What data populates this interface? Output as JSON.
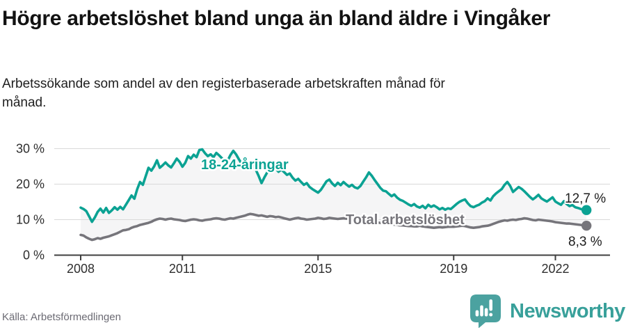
{
  "header": {
    "title": "Högre arbetslöshet bland unga än bland äldre i Vingåker",
    "subtitle": "Arbetssökande som andel av den registerbaserade arbetskraften månad för månad."
  },
  "footer": {
    "source": "Källa: Arbetsförmedlingen",
    "brand_name": "Newsworthy"
  },
  "colors": {
    "young_line": "#0ba293",
    "total_line": "#76757b",
    "area_fill": "#f5f5f6",
    "grid": "#d9d9d9",
    "axis": "#3f3f3f",
    "brand_teal": "#38a09a",
    "logo_bubble": "#4ba2a0"
  },
  "chart_data": {
    "type": "line",
    "title": "Högre arbetslöshet bland unga än bland äldre i Vingåker",
    "xlabel": "",
    "ylabel": "",
    "x_domain": [
      "2008-01",
      "2022-12"
    ],
    "x_step": "month",
    "ylim": [
      0,
      30
    ],
    "grid": true,
    "x_ticks": [
      {
        "value": 2008,
        "label": "2008"
      },
      {
        "value": 2011,
        "label": "2011"
      },
      {
        "value": 2015,
        "label": "2015"
      },
      {
        "value": 2019,
        "label": "2019"
      },
      {
        "value": 2022,
        "label": "2022"
      }
    ],
    "y_ticks": [
      {
        "value": 0,
        "label": "0 %"
      },
      {
        "value": 10,
        "label": "10 %"
      },
      {
        "value": 20,
        "label": "20 %"
      },
      {
        "value": 30,
        "label": "30 %"
      }
    ],
    "series": [
      {
        "name": "18-24-åringar",
        "label": "18-24-åringar",
        "end_label": "12,7 %",
        "end_value": 12.7,
        "color": "#0ba293",
        "values": [
          13.4,
          13.0,
          12.4,
          10.9,
          9.4,
          10.6,
          12.2,
          13.1,
          12.0,
          13.3,
          11.9,
          12.6,
          13.5,
          12.8,
          13.6,
          12.9,
          14.2,
          15.5,
          16.8,
          15.9,
          18.6,
          20.6,
          19.8,
          22.2,
          24.6,
          23.8,
          25.0,
          26.7,
          24.6,
          25.3,
          26.1,
          25.3,
          24.7,
          25.9,
          27.2,
          26.3,
          24.9,
          26.0,
          27.9,
          27.2,
          28.3,
          27.6,
          29.6,
          29.8,
          28.7,
          27.9,
          28.4,
          27.6,
          28.8,
          28.1,
          27.3,
          25.9,
          26.6,
          28.2,
          29.4,
          28.4,
          27.0,
          25.7,
          26.4,
          25.5,
          24.6,
          25.2,
          24.0,
          22.3,
          20.3,
          21.9,
          23.3,
          24.5,
          23.6,
          24.4,
          23.5,
          24.1,
          23.4,
          22.6,
          23.0,
          21.8,
          21.0,
          21.5,
          20.6,
          19.8,
          20.3,
          19.2,
          18.6,
          18.1,
          17.6,
          18.4,
          19.6,
          20.8,
          21.3,
          20.2,
          19.5,
          20.4,
          19.7,
          20.6,
          19.9,
          19.3,
          19.8,
          19.1,
          18.8,
          19.5,
          20.7,
          21.9,
          23.3,
          22.4,
          21.2,
          20.1,
          19.0,
          18.2,
          18.0,
          17.3,
          16.6,
          17.1,
          16.2,
          15.6,
          15.3,
          14.8,
          14.3,
          13.9,
          14.4,
          13.7,
          13.4,
          13.9,
          13.2,
          14.2,
          13.6,
          14.0,
          13.5,
          12.9,
          13.3,
          12.8,
          13.2,
          13.0,
          13.7,
          14.4,
          15.0,
          15.4,
          15.7,
          14.6,
          13.8,
          13.5,
          13.9,
          14.2,
          14.8,
          15.2,
          16.0,
          15.4,
          16.6,
          17.4,
          18.0,
          18.6,
          19.8,
          20.6,
          19.5,
          17.8,
          18.5,
          19.2,
          18.7,
          18.0,
          17.2,
          16.4,
          15.7,
          16.3,
          17.0,
          16.0,
          15.5,
          15.1,
          15.7,
          16.3,
          15.1,
          14.6,
          14.2,
          15.2,
          14.4,
          13.8,
          14.1,
          13.5,
          13.3,
          13.0,
          12.8,
          12.7
        ]
      },
      {
        "name": "Total arbetslöshet",
        "label": "Total arbetslöshet",
        "end_label": "8,3 %",
        "end_value": 8.3,
        "color": "#76757b",
        "values": [
          5.7,
          5.5,
          5.0,
          4.6,
          4.3,
          4.5,
          4.8,
          4.6,
          4.9,
          5.1,
          5.3,
          5.6,
          5.9,
          6.2,
          6.6,
          7.0,
          7.1,
          7.3,
          7.7,
          8.0,
          8.2,
          8.5,
          8.7,
          8.9,
          9.1,
          9.4,
          9.8,
          10.1,
          10.3,
          10.2,
          10.0,
          10.2,
          10.3,
          10.1,
          10.0,
          9.9,
          9.7,
          9.6,
          9.8,
          10.0,
          10.1,
          10.0,
          9.8,
          9.7,
          9.9,
          10.0,
          10.1,
          10.3,
          10.4,
          10.3,
          10.1,
          10.0,
          10.2,
          10.4,
          10.3,
          10.5,
          10.7,
          10.9,
          11.1,
          11.4,
          11.6,
          11.5,
          11.3,
          11.1,
          11.2,
          11.0,
          10.8,
          11.0,
          10.9,
          10.7,
          10.8,
          10.6,
          10.4,
          10.2,
          10.0,
          10.2,
          10.4,
          10.5,
          10.3,
          10.2,
          10.0,
          10.1,
          10.2,
          10.3,
          10.5,
          10.4,
          10.2,
          10.3,
          10.5,
          10.4,
          10.3,
          10.2,
          10.3,
          10.4,
          10.3,
          10.2,
          10.1,
          10.0,
          9.9,
          9.8,
          9.7,
          9.6,
          9.5,
          9.4,
          9.3,
          9.2,
          9.1,
          9.0,
          8.9,
          8.8,
          8.7,
          8.6,
          8.5,
          8.4,
          8.4,
          8.3,
          8.2,
          8.2,
          8.1,
          8.1,
          8.3,
          8.1,
          8.0,
          7.9,
          7.8,
          7.7,
          7.8,
          7.9,
          7.8,
          7.9,
          8.0,
          8.0,
          8.0,
          8.1,
          8.2,
          8.3,
          8.2,
          8.0,
          7.8,
          7.7,
          7.8,
          7.9,
          8.1,
          8.2,
          8.3,
          8.5,
          8.8,
          9.1,
          9.4,
          9.6,
          9.8,
          9.7,
          9.9,
          10.0,
          9.9,
          10.1,
          10.2,
          10.4,
          10.3,
          10.1,
          9.9,
          9.8,
          10.0,
          9.9,
          9.8,
          9.7,
          9.6,
          9.5,
          9.3,
          9.2,
          9.1,
          9.0,
          8.9,
          8.9,
          8.8,
          8.7,
          8.6,
          8.5,
          8.4,
          8.3
        ]
      }
    ],
    "legend_position": "inline-labels"
  }
}
